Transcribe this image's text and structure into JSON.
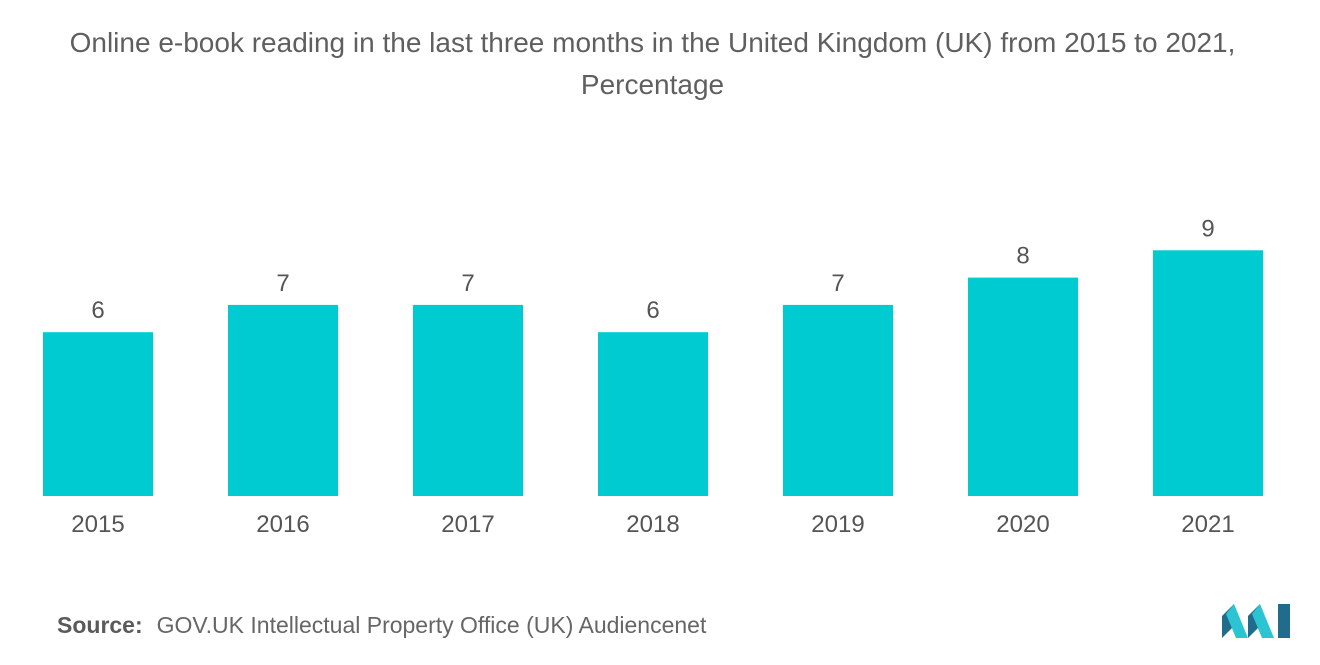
{
  "title": "Online e-book reading in the last three months in the United Kingdom (UK) from 2015 to 2021, Percentage",
  "source": {
    "label": "Source:",
    "text": "GOV.UK Intellectual Property Office (UK) Audiencenet"
  },
  "colors": {
    "bar": "#00cbd0",
    "text": "#555555",
    "logo_dark": "#1f6c8c",
    "logo_light": "#2cc3d2"
  },
  "chart_data": {
    "type": "bar",
    "categories": [
      "2015",
      "2016",
      "2017",
      "2018",
      "2019",
      "2020",
      "2021"
    ],
    "values": [
      6,
      7,
      7,
      6,
      7,
      8,
      9
    ],
    "title": "Online e-book reading in the last three months in the United Kingdom (UK) from 2015 to 2021, Percentage",
    "xlabel": "",
    "ylabel": "",
    "ylim": [
      0,
      9
    ],
    "grid": false,
    "data_labels": true
  }
}
